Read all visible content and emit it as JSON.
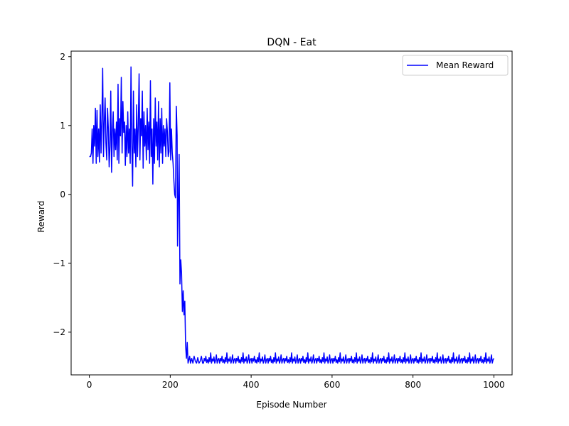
{
  "chart_data": {
    "type": "line",
    "title": "DQN - Eat",
    "xlabel": "Episode Number",
    "ylabel": "Reward",
    "xlim": [
      -45,
      1045
    ],
    "ylim": [
      -2.62,
      2.08
    ],
    "xticks": [
      0,
      200,
      400,
      600,
      800,
      1000
    ],
    "xtick_labels": [
      "0",
      "200",
      "400",
      "600",
      "800",
      "1000"
    ],
    "yticks": [
      -2,
      -1,
      0,
      1,
      2
    ],
    "ytick_labels": [
      "−2",
      "−1",
      "0",
      "1",
      "2"
    ],
    "grid": false,
    "legend": {
      "placement": "upper-right"
    },
    "series": [
      {
        "name": "Mean Reward",
        "color": "#0000ff",
        "keypoints": [
          [
            0,
            0.55
          ],
          [
            3,
            0.55
          ],
          [
            5,
            0.6
          ],
          [
            7,
            0.95
          ],
          [
            9,
            0.45
          ],
          [
            11,
            1.0
          ],
          [
            13,
            0.7
          ],
          [
            15,
            1.25
          ],
          [
            17,
            0.45
          ],
          [
            19,
            1.22
          ],
          [
            21,
            0.55
          ],
          [
            23,
            0.95
          ],
          [
            25,
            0.47
          ],
          [
            27,
            1.3
          ],
          [
            29,
            0.6
          ],
          [
            31,
            1.1
          ],
          [
            33,
            1.83
          ],
          [
            35,
            0.55
          ],
          [
            37,
            1.05
          ],
          [
            39,
            1.4
          ],
          [
            41,
            0.75
          ],
          [
            43,
            0.5
          ],
          [
            45,
            1.25
          ],
          [
            47,
            0.95
          ],
          [
            49,
            0.4
          ],
          [
            51,
            0.7
          ],
          [
            53,
            1.5
          ],
          [
            55,
            0.32
          ],
          [
            57,
            0.9
          ],
          [
            59,
            1.2
          ],
          [
            61,
            0.55
          ],
          [
            63,
            0.95
          ],
          [
            65,
            0.65
          ],
          [
            67,
            1.05
          ],
          [
            69,
            0.5
          ],
          [
            71,
            1.6
          ],
          [
            73,
            0.45
          ],
          [
            75,
            1.1
          ],
          [
            77,
            0.85
          ],
          [
            79,
            1.7
          ],
          [
            81,
            0.6
          ],
          [
            83,
            1.35
          ],
          [
            85,
            0.9
          ],
          [
            87,
            1.05
          ],
          [
            89,
            0.42
          ],
          [
            91,
            1.0
          ],
          [
            93,
            0.55
          ],
          [
            95,
            1.2
          ],
          [
            97,
            0.6
          ],
          [
            99,
            0.95
          ],
          [
            101,
            0.45
          ],
          [
            103,
            1.85
          ],
          [
            105,
            0.7
          ],
          [
            107,
            0.12
          ],
          [
            109,
            1.5
          ],
          [
            111,
            0.6
          ],
          [
            113,
            0.95
          ],
          [
            115,
            0.4
          ],
          [
            117,
            1.3
          ],
          [
            119,
            0.55
          ],
          [
            121,
            1.0
          ],
          [
            123,
            1.75
          ],
          [
            125,
            0.5
          ],
          [
            127,
            1.1
          ],
          [
            129,
            0.85
          ],
          [
            131,
            1.5
          ],
          [
            133,
            0.38
          ],
          [
            135,
            1.2
          ],
          [
            137,
            0.7
          ],
          [
            139,
            1.0
          ],
          [
            141,
            0.5
          ],
          [
            143,
            1.25
          ],
          [
            145,
            0.65
          ],
          [
            147,
            1.05
          ],
          [
            149,
            0.45
          ],
          [
            151,
            1.65
          ],
          [
            153,
            0.55
          ],
          [
            155,
            0.95
          ],
          [
            157,
            0.15
          ],
          [
            159,
            1.1
          ],
          [
            161,
            0.45
          ],
          [
            163,
            1.4
          ],
          [
            165,
            0.7
          ],
          [
            167,
            1.05
          ],
          [
            169,
            0.5
          ],
          [
            171,
            1.35
          ],
          [
            173,
            0.4
          ],
          [
            175,
            1.1
          ],
          [
            177,
            0.6
          ],
          [
            179,
            1.25
          ],
          [
            181,
            0.45
          ],
          [
            183,
            1.0
          ],
          [
            185,
            0.7
          ],
          [
            187,
            0.95
          ],
          [
            189,
            0.55
          ],
          [
            191,
            1.1
          ],
          [
            193,
            0.9
          ],
          [
            195,
            0.55
          ],
          [
            197,
            0.62
          ],
          [
            199,
            1.62
          ],
          [
            201,
            0.5
          ],
          [
            203,
            0.95
          ],
          [
            205,
            0.6
          ],
          [
            207,
            0.45
          ],
          [
            209,
            0.2
          ],
          [
            211,
            0.0
          ],
          [
            213,
            -0.05
          ],
          [
            215,
            1.28
          ],
          [
            217,
            0.85
          ],
          [
            218,
            -0.75
          ],
          [
            220,
            -0.1
          ],
          [
            222,
            0.58
          ],
          [
            224,
            -1.3
          ],
          [
            226,
            -0.95
          ],
          [
            228,
            -1.15
          ],
          [
            230,
            -1.7
          ],
          [
            232,
            -1.4
          ],
          [
            234,
            -1.75
          ],
          [
            236,
            -1.55
          ],
          [
            238,
            -2.2
          ],
          [
            240,
            -2.38
          ],
          [
            242,
            -2.15
          ],
          [
            244,
            -2.45
          ],
          [
            246,
            -2.4
          ],
          [
            248,
            -2.35
          ],
          [
            250,
            -2.45
          ],
          [
            253,
            -2.38
          ],
          [
            256,
            -2.45
          ],
          [
            259,
            -2.35
          ],
          [
            262,
            -2.42
          ],
          [
            265,
            -2.45
          ],
          [
            268,
            -2.37
          ],
          [
            271,
            -2.45
          ],
          [
            274,
            -2.42
          ],
          [
            277,
            -2.35
          ],
          [
            280,
            -2.45
          ]
        ],
        "tail": {
          "from": 282,
          "to": 1000,
          "step": 2,
          "values": [
            -2.45,
            -2.38,
            -2.42,
            -2.35,
            -2.44,
            -2.4,
            -2.45,
            -2.37,
            -2.43,
            -2.3,
            -2.45,
            -2.39,
            -2.42,
            -2.36,
            -2.45,
            -2.41,
            -2.33,
            -2.45,
            -2.4,
            -2.38
          ]
        }
      }
    ]
  }
}
